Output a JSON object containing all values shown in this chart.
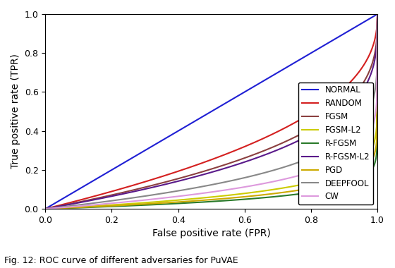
{
  "xlabel": "False positive rate (FPR)",
  "ylabel": "True positive rate (TPR)",
  "figcaption": "Fig. 12: ROC curve of different adversaries for PuVAE",
  "xlim": [
    0.0,
    1.0
  ],
  "ylim": [
    0.0,
    1.0
  ],
  "curves": {
    "NORMAL": {
      "color": "#1f1fd4",
      "power": 1.0
    },
    "RANDOM": {
      "color": "#d42020",
      "power": 0.42
    },
    "FGSM": {
      "color": "#8B4040",
      "power": 0.33
    },
    "FGSM-L2": {
      "color": "#cccc00",
      "power": 0.09
    },
    "R-FGSM": {
      "color": "#2a7a2a",
      "power": 0.055
    },
    "R-FGSM-L2": {
      "color": "#5a1a8a",
      "power": 0.3
    },
    "PGD": {
      "color": "#ccaa00",
      "power": 0.07
    },
    "DEEPFOOL": {
      "color": "#888888",
      "power": 0.19
    },
    "CW": {
      "color": "#dd99dd",
      "power": 0.13
    }
  },
  "legend_order": [
    "NORMAL",
    "RANDOM",
    "FGSM",
    "FGSM-L2",
    "R-FGSM",
    "R-FGSM-L2",
    "PGD",
    "DEEPFOOL",
    "CW"
  ],
  "fontsize": 10,
  "tick_fontsize": 9,
  "legend_fontsize": 8.5
}
